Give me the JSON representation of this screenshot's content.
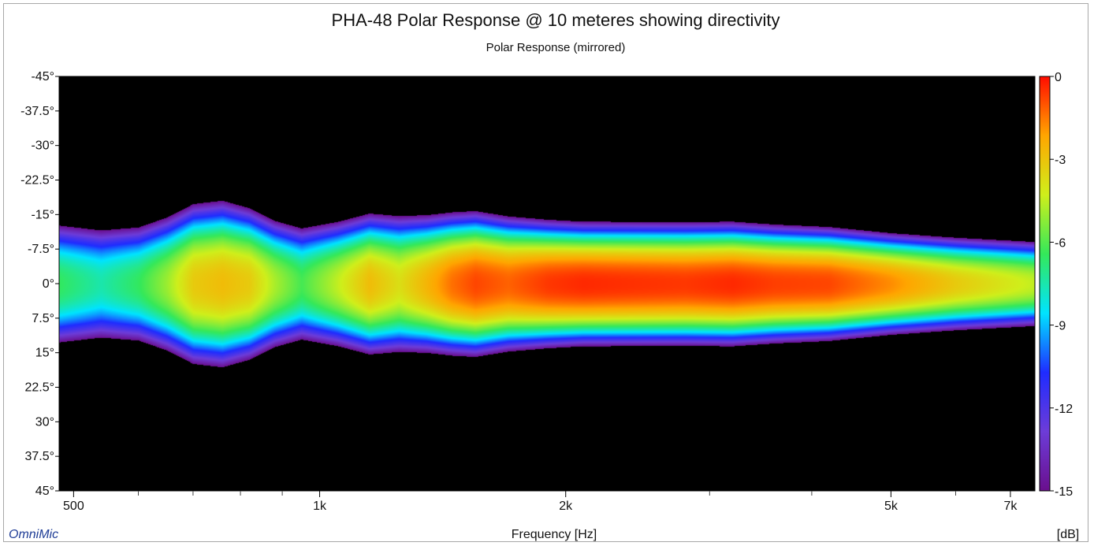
{
  "chart_data": {
    "type": "heatmap",
    "title": "PHA-48 Polar Response @ 10 meteres showing directivity",
    "subtitle": "Polar Response (mirrored)",
    "xlabel": "Frequency [Hz]",
    "colorbar_label": "[dB]",
    "brand": "OmniMic",
    "x_scale": "log",
    "xlim": [
      480,
      7500
    ],
    "ylim": [
      -45,
      45
    ],
    "x_ticks": [
      {
        "value": 500,
        "label": "500"
      },
      {
        "value": 1000,
        "label": "1k"
      },
      {
        "value": 2000,
        "label": "2k"
      },
      {
        "value": 5000,
        "label": "5k"
      },
      {
        "value": 7000,
        "label": "7k"
      }
    ],
    "x_minor_ticks": [
      600,
      700,
      800,
      900,
      3000,
      4000,
      6000
    ],
    "y_ticks": [
      {
        "value": -45,
        "label": "-45°"
      },
      {
        "value": -37.5,
        "label": "-37.5°"
      },
      {
        "value": -30,
        "label": "-30°"
      },
      {
        "value": -22.5,
        "label": "-22.5°"
      },
      {
        "value": -15,
        "label": "-15°"
      },
      {
        "value": -7.5,
        "label": "-7.5°"
      },
      {
        "value": 0,
        "label": "0°"
      },
      {
        "value": 7.5,
        "label": "7.5°"
      },
      {
        "value": 15,
        "label": "15°"
      },
      {
        "value": 22.5,
        "label": "22.5°"
      },
      {
        "value": 30,
        "label": "30°"
      },
      {
        "value": 37.5,
        "label": "37.5°"
      },
      {
        "value": 45,
        "label": "45°"
      }
    ],
    "colorbar": {
      "range": [
        -15,
        0
      ],
      "ticks": [
        {
          "value": 0,
          "label": "0"
        },
        {
          "value": -3,
          "label": "-3"
        },
        {
          "value": -6,
          "label": "-6"
        },
        {
          "value": -9,
          "label": "-9"
        },
        {
          "value": -12,
          "label": "-12"
        },
        {
          "value": -15,
          "label": "-15"
        }
      ],
      "colors": [
        "#6a0f8e",
        "#6d3cd8",
        "#1f2cff",
        "#00e4ff",
        "#34e85a",
        "#cfef1b",
        "#ffa600",
        "#ff0c00"
      ]
    },
    "background_color": "#000000",
    "grid": false,
    "colorbar_position": "right",
    "approx_response": {
      "freq_hz": [
        480,
        540,
        600,
        650,
        700,
        760,
        820,
        880,
        950,
        1050,
        1150,
        1250,
        1350,
        1450,
        1550,
        1700,
        1900,
        2100,
        2400,
        2800,
        3200,
        3600,
        4200,
        5000,
        6000,
        7500
      ],
      "width_deg": [
        16,
        15.5,
        15.5,
        17,
        19,
        19.5,
        18,
        16,
        15,
        15.5,
        16.5,
        16.5,
        16,
        16,
        16,
        15,
        14,
        13.5,
        13.5,
        13.5,
        13.5,
        13,
        12.5,
        11.5,
        11,
        10.5
      ],
      "peak_db": [
        -6.5,
        -7.5,
        -6.5,
        -5,
        -3.2,
        -2.8,
        -3.2,
        -4.8,
        -6.2,
        -4.5,
        -2.8,
        -3.8,
        -2.6,
        -1.4,
        -0.8,
        -1.2,
        -0.6,
        -0.4,
        -0.5,
        -0.6,
        -0.4,
        -0.7,
        -0.8,
        -1.8,
        -3.2,
        -4.5
      ]
    }
  }
}
